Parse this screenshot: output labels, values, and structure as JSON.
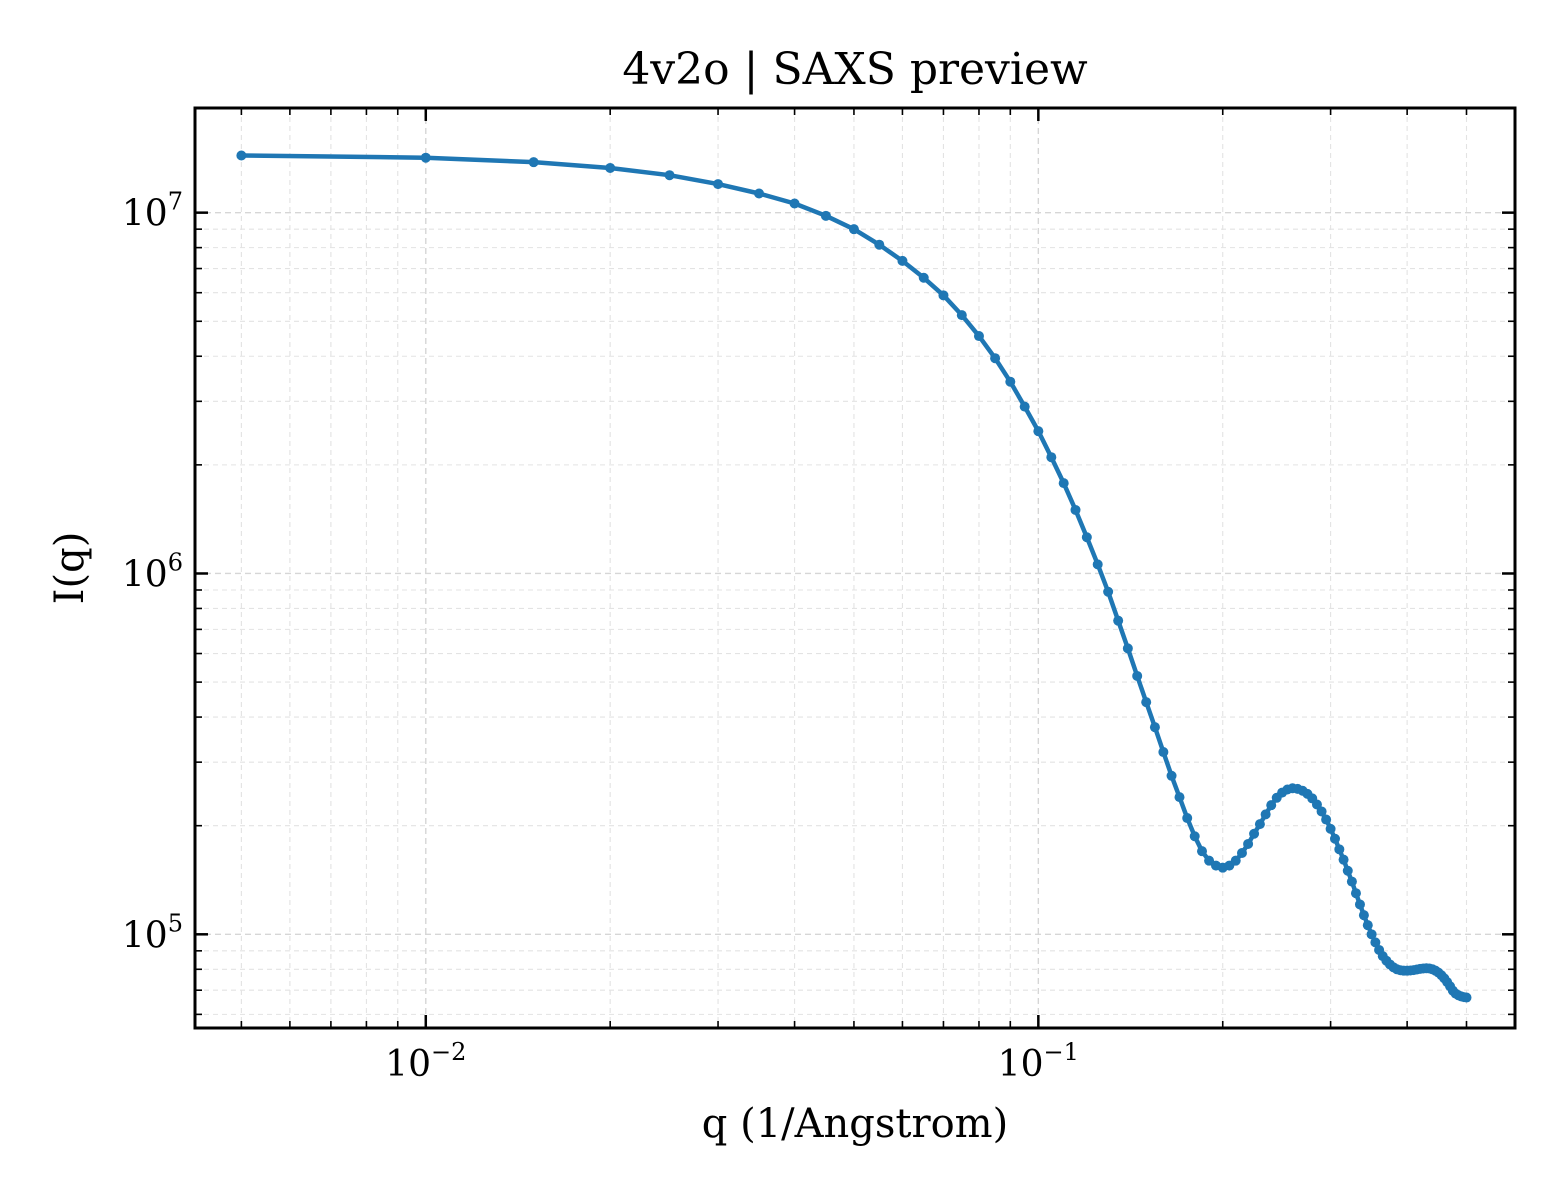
{
  "chart_data": {
    "type": "line",
    "title": "4v2o | SAXS preview",
    "xlabel": "q (1/Angstrom)",
    "ylabel": "I(q)",
    "xscale": "log",
    "yscale": "log",
    "xlim": [
      0.0042,
      0.6
    ],
    "ylim": [
      55000,
      19500000
    ],
    "grid": true,
    "line_color": "#1f77b4",
    "x_ticks": [
      {
        "base": "10",
        "exp": "−2",
        "value": 0.01
      },
      {
        "base": "10",
        "exp": "−1",
        "value": 0.1
      }
    ],
    "y_ticks": [
      {
        "base": "10",
        "exp": "5",
        "value": 100000
      },
      {
        "base": "10",
        "exp": "6",
        "value": 1000000
      },
      {
        "base": "10",
        "exp": "7",
        "value": 10000000
      }
    ],
    "series": [
      {
        "x": [
          0.005,
          0.01,
          0.015,
          0.02,
          0.025,
          0.03,
          0.035,
          0.04,
          0.045,
          0.05,
          0.055,
          0.06,
          0.065,
          0.07,
          0.075,
          0.08,
          0.085,
          0.09,
          0.095,
          0.1,
          0.105,
          0.11,
          0.115,
          0.12,
          0.125,
          0.13,
          0.135,
          0.14,
          0.145,
          0.15,
          0.155,
          0.16,
          0.165,
          0.17,
          0.175,
          0.18,
          0.185,
          0.19,
          0.195,
          0.2,
          0.205,
          0.21,
          0.215,
          0.22,
          0.225,
          0.23,
          0.235,
          0.24,
          0.245,
          0.25,
          0.255,
          0.26,
          0.265,
          0.27,
          0.275,
          0.28,
          0.285,
          0.29,
          0.295,
          0.3,
          0.305,
          0.31,
          0.315,
          0.32,
          0.325,
          0.33,
          0.335,
          0.34,
          0.345,
          0.35,
          0.355,
          0.36,
          0.365,
          0.37,
          0.375,
          0.38,
          0.385,
          0.39,
          0.395,
          0.4,
          0.405,
          0.41,
          0.415,
          0.42,
          0.425,
          0.43,
          0.435,
          0.44,
          0.445,
          0.45,
          0.455,
          0.46,
          0.465,
          0.47,
          0.475,
          0.48,
          0.485,
          0.49,
          0.495,
          0.5
        ],
        "y": [
          14400000,
          14200000,
          13800000,
          13300000,
          12700000,
          12000000,
          11300000,
          10600000,
          9800000,
          9000000,
          8150000,
          7350000,
          6600000,
          5900000,
          5200000,
          4550000,
          3950000,
          3400000,
          2900000,
          2480000,
          2100000,
          1780000,
          1500000,
          1260000,
          1060000,
          890000,
          740000,
          620000,
          520000,
          440000,
          375000,
          320000,
          275000,
          240000,
          210000,
          187000,
          170000,
          160000,
          155000,
          153000,
          155000,
          160000,
          168000,
          178000,
          190000,
          202000,
          215000,
          228000,
          239000,
          247000,
          252000,
          254000,
          253000,
          250000,
          245000,
          238000,
          229000,
          219000,
          208000,
          196000,
          184000,
          172000,
          161000,
          150000,
          140000,
          130000,
          121000,
          113000,
          106000,
          100000,
          95000,
          90500,
          87000,
          84500,
          82500,
          81000,
          80000,
          79500,
          79300,
          79300,
          79400,
          79600,
          79900,
          80200,
          80400,
          80500,
          80400,
          80000,
          79300,
          78300,
          77000,
          75500,
          73700,
          71800,
          69800,
          68500,
          67800,
          67300,
          67000,
          66800
        ]
      }
    ]
  }
}
